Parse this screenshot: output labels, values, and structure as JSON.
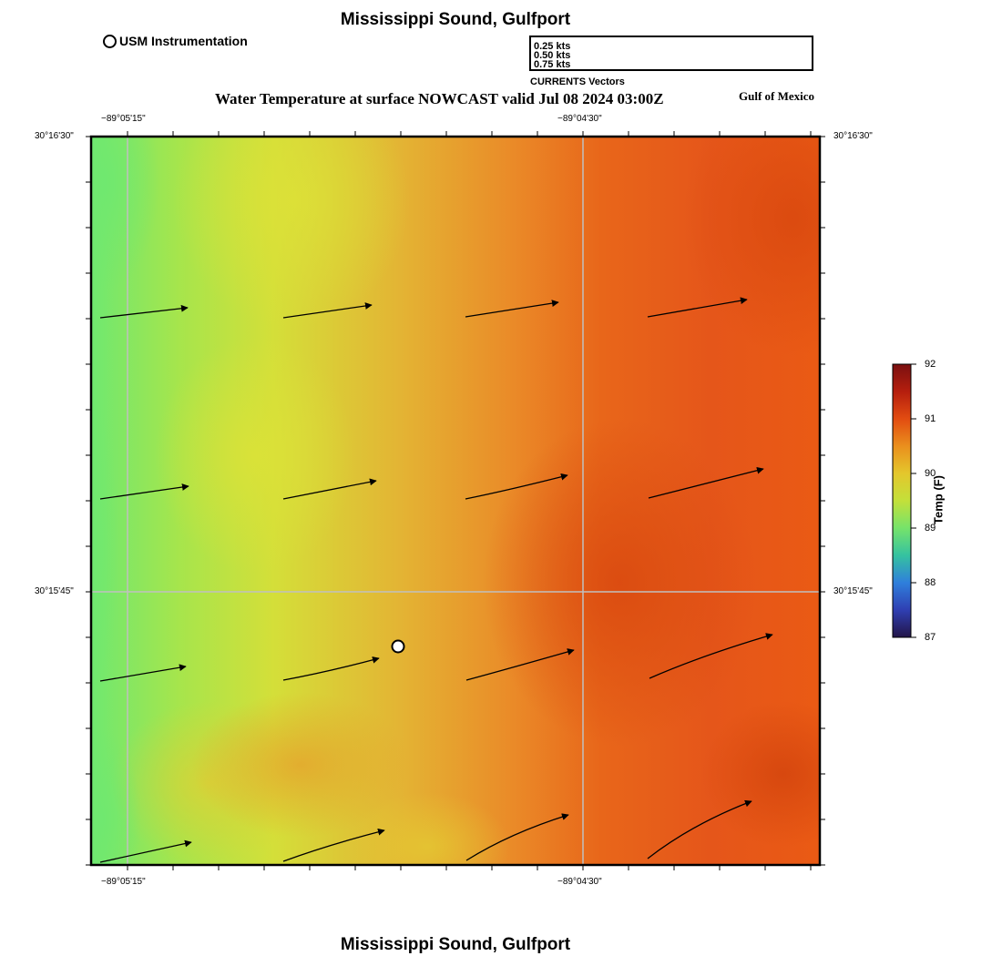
{
  "title": "Mississippi Sound, Gulfport",
  "subtitle": "Water Temperature at surface NOWCAST valid Jul 08 2024 03:00Z",
  "region_label": "Gulf of Mexico",
  "station_legend": {
    "label": "USM Instrumentation",
    "icon": "open-circle-icon"
  },
  "vector_legend": {
    "caption": "CURRENTS Vectors",
    "entries": [
      {
        "label": "0.25 kts",
        "speed": 0.25
      },
      {
        "label": "0.50 kts",
        "speed": 0.5
      },
      {
        "label": "0.75 kts",
        "speed": 0.75
      }
    ]
  },
  "axes": {
    "lon_labels": [
      "−89°05'15\"",
      "−89°04'30\""
    ],
    "lat_labels": [
      "30°16'30\"",
      "30°15'45\""
    ]
  },
  "colorbar": {
    "title": "Temp (F)",
    "min": 87,
    "max": 92,
    "ticks": [
      "92",
      "91",
      "90",
      "89",
      "88",
      "87"
    ],
    "colors": [
      "#7a1010",
      "#b51e0e",
      "#e24c11",
      "#ea8f1d",
      "#e4c72c",
      "#c3e03a",
      "#76e36a",
      "#35c2a0",
      "#2f7fdc",
      "#2f3fb2",
      "#231548"
    ]
  },
  "field_colors": {
    "green": "#6fe870",
    "yellow": "#d9df38",
    "gold": "#e4b132",
    "orange": "#ea7b22",
    "red_orange": "#e25514"
  },
  "station": {
    "name": "USM Instrumentation"
  }
}
